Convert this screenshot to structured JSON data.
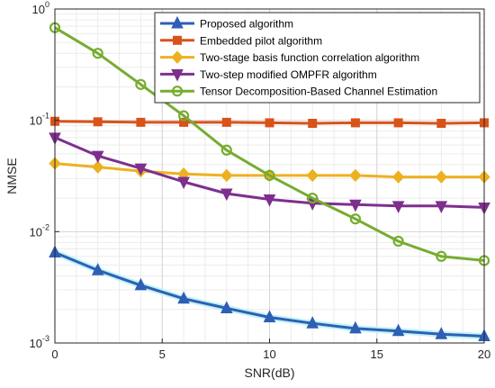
{
  "chart_data": {
    "type": "line",
    "xlabel": "SNR(dB)",
    "ylabel": "NMSE",
    "xlim": [
      0,
      20
    ],
    "ylim": [
      0.001,
      1
    ],
    "yscale": "log",
    "grid": true,
    "legend_position": "top-right",
    "x_ticks": [
      "0",
      "5",
      "10",
      "15",
      "20"
    ],
    "y_ticks": [
      {
        "base": "10",
        "exp": "0"
      },
      {
        "base": "10",
        "exp": "-1"
      },
      {
        "base": "10",
        "exp": "-2"
      },
      {
        "base": "10",
        "exp": "-3"
      }
    ],
    "x": [
      0,
      2,
      4,
      6,
      8,
      10,
      12,
      14,
      16,
      18,
      20
    ],
    "series": [
      {
        "name": "Proposed algorithm",
        "color": "#2f5fb5",
        "marker": "triangle-up",
        "values": [
          0.0065,
          0.0045,
          0.0033,
          0.0025,
          0.00205,
          0.0017,
          0.0015,
          0.00135,
          0.00128,
          0.0012,
          0.00115
        ]
      },
      {
        "name": "Embedded pilot algorithm",
        "color": "#d95319",
        "marker": "square",
        "values": [
          0.098,
          0.097,
          0.096,
          0.096,
          0.096,
          0.095,
          0.094,
          0.095,
          0.095,
          0.094,
          0.095
        ]
      },
      {
        "name": "Two-stage basis function correlation algorithm",
        "color": "#edb120",
        "marker": "diamond",
        "values": [
          0.041,
          0.038,
          0.035,
          0.033,
          0.032,
          0.032,
          0.032,
          0.032,
          0.031,
          0.031,
          0.031
        ]
      },
      {
        "name": "Two-step modified OMPFR algorithm",
        "color": "#7e2f8e",
        "marker": "triangle-down",
        "values": [
          0.07,
          0.048,
          0.037,
          0.028,
          0.022,
          0.0195,
          0.018,
          0.0175,
          0.017,
          0.017,
          0.0165
        ]
      },
      {
        "name": "Tensor Decomposition-Based Channel Estimation",
        "color": "#77ac30",
        "marker": "circle",
        "values": [
          0.68,
          0.4,
          0.21,
          0.11,
          0.054,
          0.032,
          0.02,
          0.013,
          0.0082,
          0.006,
          0.0055
        ]
      }
    ]
  }
}
